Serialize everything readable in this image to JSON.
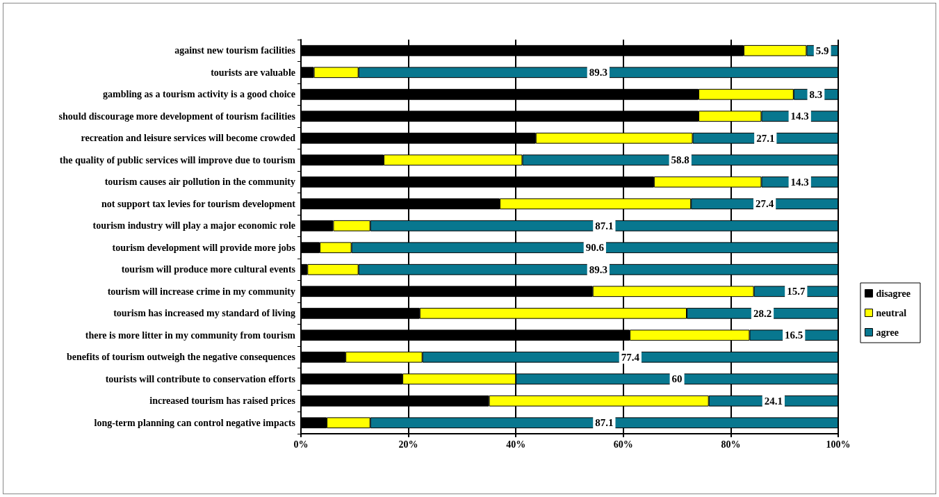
{
  "chart_data": {
    "type": "bar",
    "orientation": "horizontal",
    "stacked": true,
    "categories": [
      "against new tourism facilities",
      "tourists are valuable",
      "gambling as a tourism activity is a good choice",
      "should discourage more development of tourism facilities",
      "recreation and leisure services will become crowded",
      "the quality of public services will improve due to tourism",
      "tourism causes air pollution in the community",
      "not support tax levies for tourism development",
      "tourism industry will play a major economic role",
      "tourism development will provide more jobs",
      "tourism will produce more cultural events",
      "tourism will increase crime in my community",
      "tourism has increased my standard of living",
      "there is more litter in my community from tourism",
      "benefits of tourism outweigh the negative consequences",
      "tourists will contribute to conservation efforts",
      "increased tourism has raised prices",
      "long-term planning can control negative impacts"
    ],
    "series": [
      {
        "name": "disagree",
        "color": "#000000",
        "values": [
          82.4,
          2.4,
          74.0,
          74.0,
          43.7,
          15.4,
          65.7,
          37.0,
          6.0,
          3.5,
          1.2,
          54.3,
          22.1,
          61.2,
          8.3,
          18.9,
          35.0,
          4.8
        ]
      },
      {
        "name": "neutral",
        "color": "#ffff00",
        "values": [
          11.7,
          8.3,
          17.7,
          11.7,
          29.2,
          25.8,
          20.0,
          35.6,
          6.9,
          5.9,
          9.5,
          30.0,
          49.7,
          22.3,
          14.3,
          21.1,
          40.9,
          8.1
        ]
      },
      {
        "name": "agree",
        "color": "#08778f",
        "values": [
          5.9,
          89.3,
          8.3,
          14.3,
          27.1,
          58.8,
          14.3,
          27.4,
          87.1,
          90.6,
          89.3,
          15.7,
          28.2,
          16.5,
          77.4,
          60,
          24.1,
          87.1
        ],
        "value_labels": [
          "5.9",
          "89.3",
          "8.3",
          "14.3",
          "27.1",
          "58.8",
          "14.3",
          "27.4",
          "87.1",
          "90.6",
          "89.3",
          "15.7",
          "28.2",
          "16.5",
          "77.4",
          "60",
          "24.1",
          "87.1"
        ]
      }
    ],
    "xlim": [
      0,
      100
    ],
    "xticks": [
      {
        "value": 0,
        "label": "0%"
      },
      {
        "value": 20,
        "label": "20%"
      },
      {
        "value": 40,
        "label": "40%"
      },
      {
        "value": 60,
        "label": "60%"
      },
      {
        "value": 80,
        "label": "80%"
      },
      {
        "value": 100,
        "label": "100%"
      }
    ],
    "grid": "x",
    "legend": "right"
  }
}
